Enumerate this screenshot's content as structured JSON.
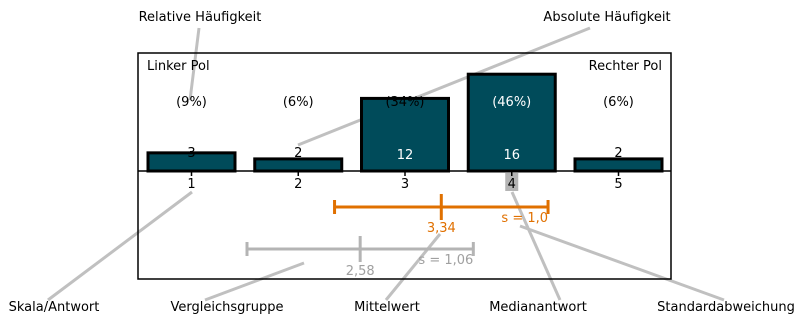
{
  "callouts": {
    "relative": "Relative Häufigkeit",
    "absolute": "Absolute Häufigkeit",
    "scale": "Skala/Antwort",
    "comparison": "Vergleichsgruppe",
    "mean": "Mittelwert",
    "median": "Medianantwort",
    "stddev": "Standardabweichung"
  },
  "poles": {
    "left": "Linker Pol",
    "right": "Rechter Pol"
  },
  "colors": {
    "bar": "#004b5a",
    "accent": "#e07000",
    "comparison": "#b4b4b4",
    "callout_line": "#c0c0c0"
  },
  "chart_data": {
    "type": "bar",
    "categories": [
      "1",
      "2",
      "3",
      "4",
      "5"
    ],
    "values": [
      3,
      2,
      12,
      16,
      2
    ],
    "percent_labels": [
      "(9%)",
      "(6%)",
      "(34%)",
      "(46%)",
      "(6%)"
    ],
    "count_labels": [
      "3",
      "2",
      "12",
      "16",
      "2"
    ],
    "median_category": "4",
    "mean": {
      "value": 3.34,
      "label": "3,34",
      "sd": 1.0,
      "sd_label": "s = 1,0"
    },
    "comparison": {
      "value": 2.58,
      "label": "2,58",
      "sd": 1.06,
      "sd_label": "s = 1,06"
    }
  }
}
